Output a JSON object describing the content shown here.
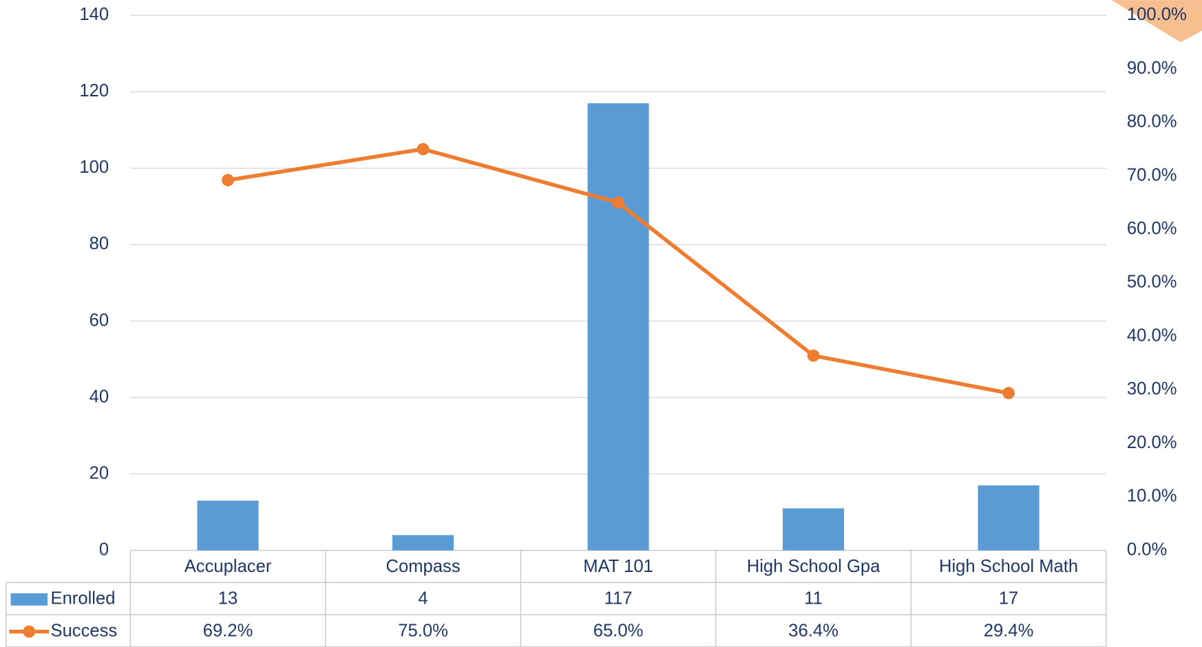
{
  "chart_data": {
    "type": "bar",
    "categories": [
      "Accuplacer",
      "Compass",
      "MAT 101",
      "High School Gpa",
      "High School Math"
    ],
    "series": [
      {
        "name": "Enrolled",
        "type": "bar",
        "color": "#5b9bd5",
        "values": [
          13,
          4,
          117,
          11,
          17
        ]
      },
      {
        "name": "Success",
        "type": "line",
        "axis": "y2",
        "color": "#ed7d31",
        "values": [
          69.2,
          75.0,
          65.0,
          36.4,
          29.4
        ],
        "value_labels": [
          "69.2%",
          "75.0%",
          "65.0%",
          "36.4%",
          "29.4%"
        ]
      }
    ],
    "ylim": [
      0,
      140
    ],
    "yticks": [
      0,
      20,
      40,
      60,
      80,
      100,
      120,
      140
    ],
    "y2lim": [
      0,
      100
    ],
    "y2ticks": [
      {
        "value": 0,
        "label": "0.0%"
      },
      {
        "value": 10,
        "label": "10.0%"
      },
      {
        "value": 20,
        "label": "20.0%"
      },
      {
        "value": 30,
        "label": "30.0%"
      },
      {
        "value": 40,
        "label": "40.0%"
      },
      {
        "value": 50,
        "label": "50.0%"
      },
      {
        "value": 60,
        "label": "60.0%"
      },
      {
        "value": 70,
        "label": "70.0%"
      },
      {
        "value": 80,
        "label": "80.0%"
      },
      {
        "value": 90,
        "label": "90.0%"
      },
      {
        "value": 100,
        "label": "100.0%"
      }
    ],
    "grid": true,
    "data_table": true
  }
}
